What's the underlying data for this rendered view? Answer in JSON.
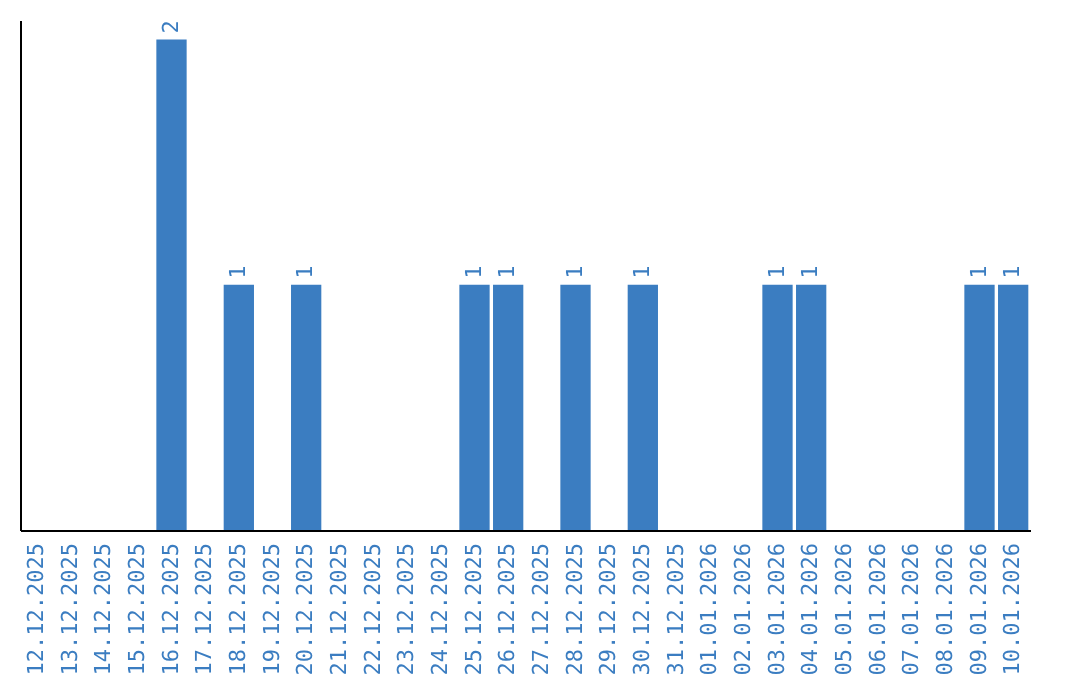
{
  "chart_data": {
    "type": "bar",
    "categories": [
      "12.12.2025",
      "13.12.2025",
      "14.12.2025",
      "15.12.2025",
      "16.12.2025",
      "17.12.2025",
      "18.12.2025",
      "19.12.2025",
      "20.12.2025",
      "21.12.2025",
      "22.12.2025",
      "23.12.2025",
      "24.12.2025",
      "25.12.2025",
      "26.12.2025",
      "27.12.2025",
      "28.12.2025",
      "29.12.2025",
      "30.12.2025",
      "31.12.2025",
      "01.01.2026",
      "02.01.2026",
      "03.01.2026",
      "04.01.2026",
      "05.01.2026",
      "06.01.2026",
      "07.01.2026",
      "08.01.2026",
      "09.01.2026",
      "10.01.2026"
    ],
    "values": [
      0,
      0,
      0,
      0,
      2,
      0,
      1,
      0,
      1,
      0,
      0,
      0,
      0,
      1,
      1,
      0,
      1,
      0,
      1,
      0,
      0,
      0,
      1,
      1,
      0,
      0,
      0,
      0,
      1,
      1
    ],
    "value_labels": [
      null,
      null,
      null,
      null,
      "2",
      null,
      "1",
      null,
      "1",
      null,
      null,
      null,
      null,
      "1",
      "1",
      null,
      "1",
      null,
      "1",
      null,
      null,
      null,
      "1",
      "1",
      null,
      null,
      null,
      null,
      "1",
      "1"
    ],
    "color": "#3b7dc1",
    "ylim": [
      0,
      2.08
    ],
    "tick_labels": "x",
    "grid": false
  }
}
